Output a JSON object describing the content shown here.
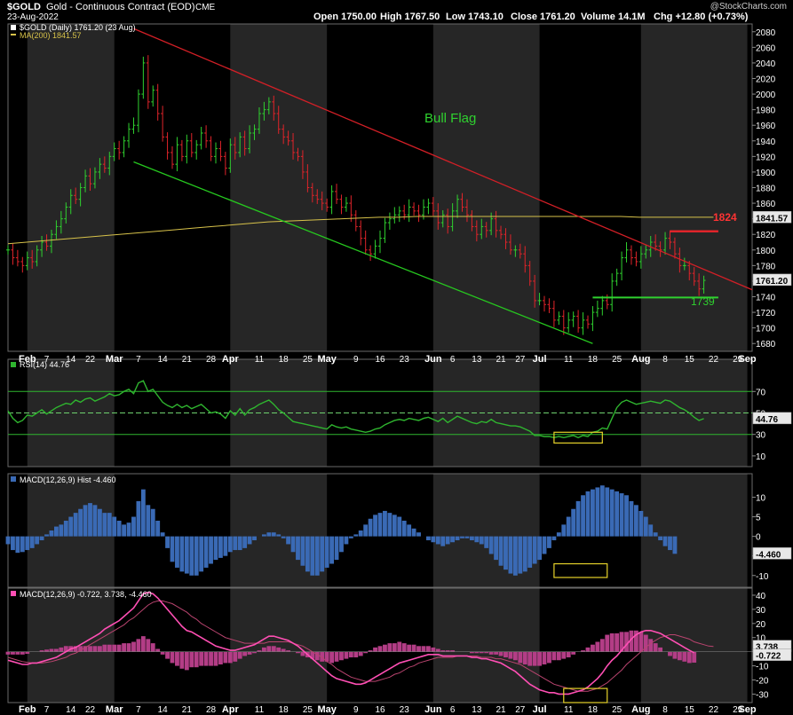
{
  "header": {
    "symbol": "$GOLD",
    "name": "Gold - Continuous Contract (EOD)",
    "exchange": "CME",
    "date": "23-Aug-2022",
    "watermark": "@StockCharts.com",
    "open": "Open 1750.00",
    "high": "High 1767.50",
    "low": "Low 1743.10",
    "close": "Close 1761.20",
    "volume": "Volume 14.1M",
    "chg": "Chg +12.80 (+0.73%)"
  },
  "legends": {
    "price": "$GOLD (Daily) 1761.20 (23 Aug)",
    "ma": "MA(200) 1841.57",
    "rsi": "RSI(14) 44.76",
    "hist": "MACD(12,26,9) Hist -4.460",
    "macd": "MACD(12,26,9) -0.722, 3.738, -4.460"
  },
  "annotations": {
    "bull_flag": "Bull Flag",
    "resistance": "1824",
    "support": "1739"
  },
  "x_labels": [
    {
      "i": 4,
      "t": "Feb"
    },
    {
      "i": 8,
      "t": "7"
    },
    {
      "i": 13,
      "t": "14"
    },
    {
      "i": 17,
      "t": "22"
    },
    {
      "i": 22,
      "t": "Mar"
    },
    {
      "i": 27,
      "t": "7"
    },
    {
      "i": 32,
      "t": "14"
    },
    {
      "i": 37,
      "t": "21"
    },
    {
      "i": 42,
      "t": "28"
    },
    {
      "i": 46,
      "t": "Apr"
    },
    {
      "i": 52,
      "t": "11"
    },
    {
      "i": 57,
      "t": "18"
    },
    {
      "i": 62,
      "t": "25"
    },
    {
      "i": 66,
      "t": "May"
    },
    {
      "i": 72,
      "t": "9"
    },
    {
      "i": 77,
      "t": "16"
    },
    {
      "i": 82,
      "t": "23"
    },
    {
      "i": 88,
      "t": "Jun"
    },
    {
      "i": 92,
      "t": "6"
    },
    {
      "i": 97,
      "t": "13"
    },
    {
      "i": 102,
      "t": "21"
    },
    {
      "i": 106,
      "t": "27"
    },
    {
      "i": 110,
      "t": "Jul"
    },
    {
      "i": 116,
      "t": "11"
    },
    {
      "i": 121,
      "t": "18"
    },
    {
      "i": 126,
      "t": "25"
    },
    {
      "i": 131,
      "t": "Aug"
    },
    {
      "i": 136,
      "t": "8"
    },
    {
      "i": 141,
      "t": "15"
    },
    {
      "i": 146,
      "t": "22"
    },
    {
      "i": 151,
      "t": "29"
    },
    {
      "i": 153,
      "t": "Sep"
    }
  ],
  "colors": {
    "up": "#2fd12f",
    "down": "#e0242a",
    "ma": "#d7c24a",
    "channel_top": "#d21f26",
    "channel_bottom": "#26c81f",
    "bull_flag": "#2fd12f",
    "rsi": "#2fb52f",
    "hist": "#3a6ab5",
    "macd": "#ff4fb4",
    "signal": "#b9446f",
    "highlight_box": "#e6d22a"
  },
  "chart_data": [
    {
      "type": "candlestick",
      "title": "$GOLD (Daily) Gold - Continuous Contract (EOD)",
      "ylim": [
        1670,
        2090
      ],
      "yticks": [
        1680,
        1700,
        1720,
        1740,
        1760,
        1780,
        1800,
        1820,
        1840,
        1860,
        1880,
        1900,
        1920,
        1940,
        1960,
        1980,
        2000,
        2020,
        2040,
        2060,
        2080
      ],
      "close_label": "1761.20",
      "ma_label": "1841.57",
      "x_range": [
        0,
        154
      ],
      "closes": [
        1800,
        1790,
        1785,
        1780,
        1790,
        1785,
        1800,
        1810,
        1805,
        1820,
        1830,
        1840,
        1855,
        1870,
        1865,
        1880,
        1895,
        1885,
        1900,
        1910,
        1905,
        1920,
        1930,
        1925,
        1940,
        1955,
        1960,
        2000,
        2040,
        1990,
        2005,
        1975,
        1945,
        1925,
        1910,
        1935,
        1920,
        1940,
        1925,
        1935,
        1950,
        1940,
        1920,
        1930,
        1920,
        1905,
        1935,
        1925,
        1945,
        1930,
        1950,
        1955,
        1975,
        1980,
        1990,
        1975,
        1955,
        1945,
        1940,
        1925,
        1920,
        1900,
        1880,
        1870,
        1865,
        1860,
        1855,
        1875,
        1865,
        1855,
        1860,
        1845,
        1830,
        1815,
        1800,
        1795,
        1805,
        1815,
        1835,
        1840,
        1845,
        1850,
        1845,
        1855,
        1850,
        1845,
        1855,
        1860,
        1850,
        1835,
        1845,
        1830,
        1850,
        1865,
        1855,
        1845,
        1830,
        1820,
        1830,
        1825,
        1840,
        1825,
        1820,
        1810,
        1800,
        1800,
        1795,
        1780,
        1760,
        1735,
        1735,
        1730,
        1725,
        1710,
        1715,
        1700,
        1710,
        1715,
        1700,
        1710,
        1705,
        1720,
        1725,
        1735,
        1730,
        1760,
        1770,
        1790,
        1800,
        1790,
        1785,
        1795,
        1800,
        1810,
        1805,
        1800,
        1815,
        1810,
        1795,
        1780,
        1780,
        1770,
        1760,
        1750,
        1761
      ],
      "ma200": [
        1808,
        1810,
        1812,
        1814,
        1816,
        1818,
        1820,
        1822,
        1824,
        1826,
        1828,
        1830,
        1832,
        1834,
        1836,
        1837,
        1838,
        1839,
        1840,
        1841,
        1842,
        1842,
        1843,
        1843,
        1843,
        1843,
        1843,
        1843,
        1843,
        1843,
        1843,
        1843,
        1843,
        1843,
        1842,
        1842,
        1842,
        1842,
        1842
      ],
      "channel_top": [
        [
          26,
          2084
        ],
        [
          154,
          1749
        ]
      ],
      "channel_bottom": [
        [
          26,
          1913
        ],
        [
          121,
          1680
        ]
      ],
      "resistance": {
        "value": 1824,
        "from": 137,
        "to": 147
      },
      "support": {
        "value": 1739,
        "from": 121,
        "to": 147
      },
      "bull_flag_label": "Bull Flag"
    },
    {
      "type": "line",
      "title": "RSI(14) 44.76",
      "ylim": [
        0,
        100
      ],
      "yticks": [
        10,
        30,
        50,
        70
      ],
      "lines": [
        30,
        50,
        70
      ],
      "value_label": "44.76",
      "values": [
        52,
        45,
        41,
        43,
        48,
        47,
        50,
        53,
        49,
        52,
        55,
        57,
        59,
        58,
        62,
        60,
        63,
        64,
        61,
        63,
        65,
        68,
        66,
        67,
        70,
        72,
        68,
        78,
        80,
        70,
        72,
        66,
        60,
        57,
        55,
        58,
        55,
        57,
        54,
        56,
        58,
        54,
        50,
        51,
        49,
        45,
        52,
        48,
        54,
        48,
        53,
        55,
        58,
        60,
        62,
        58,
        53,
        50,
        46,
        42,
        41,
        40,
        39,
        38,
        37,
        36,
        35,
        39,
        37,
        36,
        37,
        35,
        34,
        33,
        32,
        33,
        35,
        36,
        39,
        41,
        43,
        44,
        43,
        45,
        44,
        43,
        45,
        46,
        44,
        42,
        45,
        41,
        44,
        47,
        45,
        43,
        41,
        40,
        42,
        41,
        44,
        41,
        40,
        39,
        38,
        38,
        37,
        35,
        33,
        29,
        29,
        28,
        28,
        27,
        28,
        27,
        28,
        29,
        27,
        29,
        28,
        32,
        33,
        36,
        35,
        45,
        55,
        60,
        62,
        60,
        58,
        59,
        60,
        61,
        60,
        59,
        62,
        61,
        58,
        55,
        53,
        50,
        46,
        43,
        44.76
      ]
    },
    {
      "type": "bar",
      "title": "MACD(12,26,9) Hist -4.460",
      "ylim": [
        -13,
        16
      ],
      "yticks": [
        -10,
        -5,
        0,
        5,
        10
      ],
      "value_label": "-4.460",
      "values": [
        -2,
        -3.5,
        -4.2,
        -4,
        -3.5,
        -3,
        -2,
        -1,
        0.5,
        1.5,
        2.5,
        3,
        4,
        5,
        6,
        7,
        8,
        8.5,
        8,
        7,
        6,
        6,
        5,
        4,
        3,
        3.5,
        5,
        9,
        12,
        8,
        7,
        4,
        1,
        -3,
        -6.5,
        -8,
        -9,
        -9.5,
        -10,
        -10,
        -9,
        -8,
        -7,
        -6,
        -5.5,
        -5,
        -4,
        -3.5,
        -3.5,
        -3,
        -2,
        -1,
        0,
        0.5,
        1,
        1,
        0.5,
        -0.5,
        -2,
        -4,
        -6,
        -7.5,
        -9,
        -10,
        -10,
        -9,
        -8,
        -7,
        -6,
        -4,
        -2,
        -0.5,
        0.5,
        1.5,
        3,
        4.5,
        5.5,
        6,
        6.5,
        6,
        5.5,
        5,
        4,
        3,
        2,
        1,
        0,
        -1,
        -1.5,
        -2,
        -2.5,
        -2,
        -1.5,
        -1,
        -0.5,
        -0.5,
        -1,
        -1.5,
        -2,
        -3,
        -4.5,
        -6,
        -7.5,
        -8.5,
        -9.5,
        -10,
        -9.5,
        -9,
        -8,
        -7,
        -6,
        -4.5,
        -3,
        -1,
        1,
        3,
        5,
        7,
        9,
        10.5,
        11.5,
        12,
        12.5,
        13,
        12.5,
        12,
        11.5,
        11,
        10.5,
        9,
        8,
        6.5,
        5,
        3,
        1,
        -1,
        -2.5,
        -3.5,
        -4.46
      ]
    },
    {
      "type": "line",
      "title": "MACD(12,26,9) -0.722, 3.738, -4.460",
      "ylim": [
        -36,
        45
      ],
      "yticks": [
        -30,
        -20,
        -10,
        0,
        10,
        20,
        30,
        40
      ],
      "value_labels": [
        "3.738",
        "-0.722"
      ],
      "series": [
        {
          "name": "MACD",
          "values": [
            -6,
            -7,
            -8,
            -9,
            -9,
            -8,
            -8,
            -7,
            -6,
            -5,
            -4,
            -2,
            0,
            2,
            3,
            5,
            7,
            9,
            11,
            13,
            16,
            18,
            20,
            22,
            25,
            28,
            31,
            36,
            41,
            42,
            41,
            38,
            34,
            30,
            26,
            22,
            18,
            15,
            14,
            12,
            10,
            8,
            6,
            4,
            3,
            2,
            1,
            1,
            2,
            3,
            4,
            5,
            7,
            9,
            11,
            11,
            10,
            9,
            8,
            6,
            4,
            1,
            -2,
            -5,
            -8,
            -11,
            -14,
            -17,
            -19,
            -20,
            -21,
            -22,
            -23,
            -23,
            -22,
            -20,
            -18,
            -16,
            -14,
            -12,
            -10,
            -8,
            -7,
            -6,
            -5,
            -4,
            -3,
            -2,
            -2,
            -2,
            -3,
            -3,
            -3,
            -3,
            -3,
            -3,
            -4,
            -4,
            -5,
            -5,
            -6,
            -7,
            -8,
            -10,
            -12,
            -14,
            -17,
            -20,
            -23,
            -25,
            -27,
            -28,
            -29,
            -29,
            -30,
            -30,
            -30,
            -29,
            -28,
            -27,
            -25,
            -22,
            -19,
            -15,
            -10,
            -6,
            -3,
            1,
            5,
            9,
            12,
            14,
            15,
            15,
            14,
            13,
            11,
            9,
            7,
            5,
            3,
            1,
            -0.722
          ]
        },
        {
          "name": "Signal",
          "values": [
            -4,
            -5,
            -6,
            -7,
            -7.5,
            -8,
            -8,
            -8,
            -7.5,
            -7,
            -6,
            -5,
            -4,
            -2,
            -1,
            1,
            3,
            5,
            7,
            9,
            11,
            13,
            15,
            17,
            19,
            22,
            24,
            27,
            30,
            33,
            35,
            36,
            36,
            35,
            34,
            32,
            30,
            28,
            25,
            23,
            20,
            18,
            16,
            14,
            12,
            10,
            9,
            8,
            7,
            6,
            6,
            6,
            6,
            6,
            7,
            7,
            7,
            7,
            7,
            6,
            5,
            4,
            2,
            0,
            -2,
            -4,
            -7,
            -9,
            -12,
            -14,
            -16,
            -18,
            -19,
            -20,
            -21,
            -21,
            -21,
            -20,
            -19,
            -18,
            -16,
            -15,
            -13,
            -11,
            -10,
            -8,
            -7,
            -6,
            -5,
            -4,
            -4,
            -4,
            -4,
            -3,
            -3,
            -3,
            -3,
            -3,
            -4,
            -4,
            -4,
            -5,
            -5,
            -6,
            -7,
            -8,
            -9,
            -11,
            -13,
            -15,
            -17,
            -19,
            -21,
            -23,
            -24,
            -25,
            -26,
            -27,
            -28,
            -28,
            -28,
            -27,
            -26,
            -24,
            -22,
            -19,
            -16,
            -13,
            -9,
            -6,
            -3,
            0,
            3,
            6,
            8,
            10,
            11,
            12,
            12,
            11,
            10,
            9,
            7,
            6,
            5,
            4,
            3.738
          ]
        }
      ]
    }
  ]
}
